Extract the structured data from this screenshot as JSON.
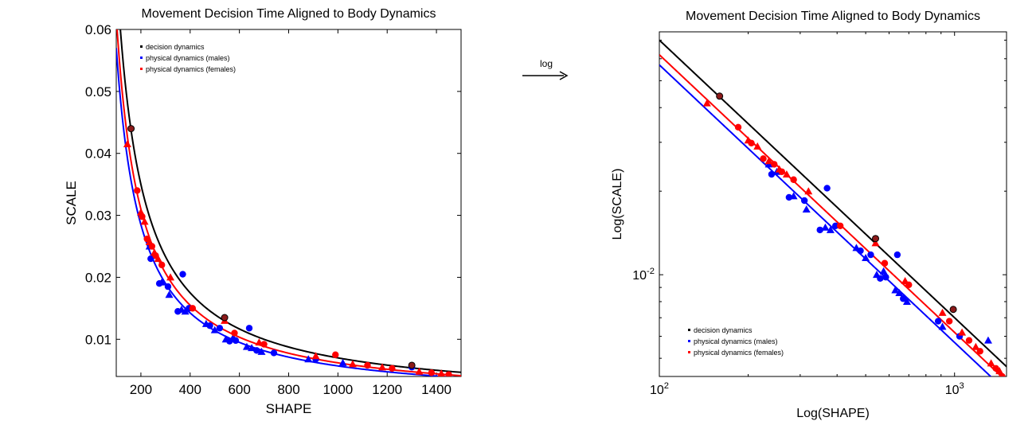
{
  "arrow_label": "log",
  "chart_data": [
    {
      "type": "scatter",
      "title": "Movement Decision Time Aligned to Body Dynamics",
      "xlabel": "SHAPE",
      "ylabel": "SCALE",
      "xlim": [
        100,
        1500
      ],
      "ylim": [
        0.004,
        0.06
      ],
      "xscale": "linear",
      "yscale": "linear",
      "xticks": [
        200,
        400,
        600,
        800,
        1000,
        1200,
        1400
      ],
      "yticks": [
        0.01,
        0.02,
        0.03,
        0.04,
        0.05,
        0.06
      ],
      "xtick_labels": [
        "200",
        "400",
        "600",
        "800",
        "1000",
        "1200",
        "1400"
      ],
      "ytick_labels": [
        "0.01",
        "0.02",
        "0.03",
        "0.04",
        "0.05",
        "0.06"
      ],
      "legend_position": "top-left",
      "series": [
        {
          "name": "decision dynamics",
          "color": "#000000",
          "fit_constant": 7.0,
          "points": [
            [
              160,
              0.044
            ],
            [
              540,
              0.0135
            ],
            [
              1300,
              0.0058
            ]
          ]
        },
        {
          "name": "physical dynamics (males)",
          "color": "#0000ff",
          "fit_constant": 5.7,
          "points": [
            [
              235,
              0.025
            ],
            [
              240,
              0.023
            ],
            [
              250,
              0.0235
            ],
            [
              275,
              0.019
            ],
            [
              285,
              0.0192
            ],
            [
              310,
              0.0185
            ],
            [
              315,
              0.0172
            ],
            [
              350,
              0.0145
            ],
            [
              365,
              0.0148
            ],
            [
              370,
              0.0205
            ],
            [
              380,
              0.0145
            ],
            [
              395,
              0.015
            ],
            [
              465,
              0.0125
            ],
            [
              480,
              0.0122
            ],
            [
              500,
              0.0115
            ],
            [
              520,
              0.0118
            ],
            [
              545,
              0.01
            ],
            [
              560,
              0.0097
            ],
            [
              575,
              0.0103
            ],
            [
              585,
              0.0098
            ],
            [
              630,
              0.0088
            ],
            [
              640,
              0.0118
            ],
            [
              650,
              0.0086
            ],
            [
              670,
              0.0082
            ],
            [
              690,
              0.008
            ],
            [
              740,
              0.0078
            ],
            [
              880,
              0.0068
            ],
            [
              910,
              0.0068
            ],
            [
              1020,
              0.0062
            ],
            [
              1300,
              0.0055
            ]
          ]
        },
        {
          "name": "physical dynamics (females)",
          "color": "#ff0000",
          "fit_constant": 6.2,
          "points": [
            [
              145,
              0.0415
            ],
            [
              185,
              0.034
            ],
            [
              200,
              0.0305
            ],
            [
              205,
              0.0298
            ],
            [
              215,
              0.029
            ],
            [
              225,
              0.0262
            ],
            [
              235,
              0.0257
            ],
            [
              245,
              0.025
            ],
            [
              255,
              0.024
            ],
            [
              260,
              0.0235
            ],
            [
              270,
              0.023
            ],
            [
              285,
              0.022
            ],
            [
              320,
              0.02
            ],
            [
              410,
              0.015
            ],
            [
              540,
              0.013
            ],
            [
              580,
              0.011
            ],
            [
              680,
              0.0095
            ],
            [
              700,
              0.0092
            ],
            [
              910,
              0.0073
            ],
            [
              990,
              0.0075
            ],
            [
              1060,
              0.006
            ],
            [
              1120,
              0.0058
            ],
            [
              1180,
              0.0055
            ],
            [
              1220,
              0.0053
            ],
            [
              1330,
              0.0048
            ],
            [
              1380,
              0.0046
            ],
            [
              1420,
              0.0045
            ],
            [
              1450,
              0.0043
            ]
          ]
        }
      ]
    },
    {
      "type": "scatter",
      "title": "Movement Decision Time Aligned to Body Dynamics",
      "xlabel": "Log(SHAPE)",
      "ylabel": "Log(SCALE)",
      "xlim": [
        100,
        1500
      ],
      "ylim": [
        0.0043,
        0.075
      ],
      "xscale": "log",
      "yscale": "log",
      "xticks": [
        100,
        1000
      ],
      "yticks": [
        0.01
      ],
      "xtick_labels": [
        {
          "base": "10",
          "exp": "2"
        },
        {
          "base": "10",
          "exp": "3"
        }
      ],
      "ytick_labels": [
        {
          "base": "10",
          "exp": "-2"
        }
      ],
      "legend_position": "bottom-left",
      "series": [
        {
          "name": "decision dynamics",
          "color": "#000000",
          "fit_constant": 7.0,
          "points": [
            [
              160,
              0.044
            ],
            [
              540,
              0.0135
            ],
            [
              990,
              0.0075
            ]
          ]
        },
        {
          "name": "physical dynamics (males)",
          "color": "#0000ff",
          "fit_constant": 5.7,
          "points": [
            [
              235,
              0.025
            ],
            [
              240,
              0.023
            ],
            [
              250,
              0.0235
            ],
            [
              275,
              0.019
            ],
            [
              285,
              0.0192
            ],
            [
              310,
              0.0185
            ],
            [
              315,
              0.0172
            ],
            [
              350,
              0.0145
            ],
            [
              365,
              0.0148
            ],
            [
              370,
              0.0205
            ],
            [
              380,
              0.0145
            ],
            [
              395,
              0.015
            ],
            [
              465,
              0.0125
            ],
            [
              480,
              0.0122
            ],
            [
              500,
              0.0115
            ],
            [
              520,
              0.0118
            ],
            [
              545,
              0.01
            ],
            [
              560,
              0.0097
            ],
            [
              575,
              0.0103
            ],
            [
              585,
              0.0098
            ],
            [
              630,
              0.0088
            ],
            [
              640,
              0.0118
            ],
            [
              650,
              0.0086
            ],
            [
              670,
              0.0082
            ],
            [
              690,
              0.008
            ],
            [
              880,
              0.0068
            ],
            [
              910,
              0.0065
            ],
            [
              1040,
              0.006
            ],
            [
              1300,
              0.0058
            ]
          ]
        },
        {
          "name": "physical dynamics (females)",
          "color": "#ff0000",
          "fit_constant": 6.2,
          "points": [
            [
              145,
              0.0415
            ],
            [
              185,
              0.034
            ],
            [
              200,
              0.0305
            ],
            [
              205,
              0.0298
            ],
            [
              215,
              0.029
            ],
            [
              225,
              0.0262
            ],
            [
              235,
              0.0257
            ],
            [
              245,
              0.025
            ],
            [
              255,
              0.024
            ],
            [
              260,
              0.0235
            ],
            [
              270,
              0.023
            ],
            [
              285,
              0.022
            ],
            [
              320,
              0.02
            ],
            [
              410,
              0.015
            ],
            [
              540,
              0.013
            ],
            [
              580,
              0.011
            ],
            [
              680,
              0.0095
            ],
            [
              700,
              0.0092
            ],
            [
              910,
              0.0073
            ],
            [
              960,
              0.0068
            ],
            [
              1060,
              0.0062
            ],
            [
              1120,
              0.0058
            ],
            [
              1180,
              0.0055
            ],
            [
              1220,
              0.0053
            ],
            [
              1330,
              0.0048
            ],
            [
              1380,
              0.0046
            ],
            [
              1420,
              0.0045
            ],
            [
              1450,
              0.0043
            ]
          ]
        }
      ]
    }
  ]
}
